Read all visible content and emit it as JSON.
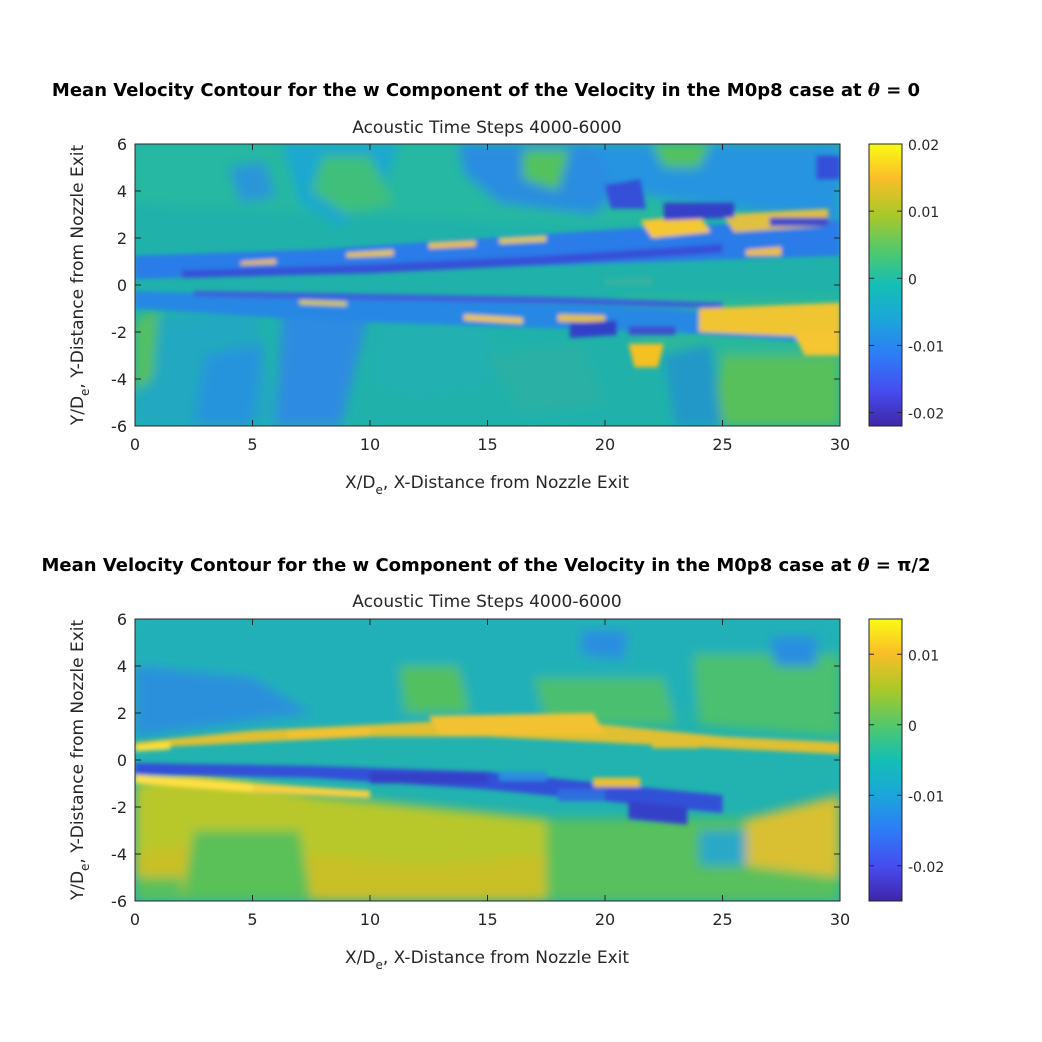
{
  "chart_data": [
    {
      "type": "heatmap",
      "title_prefix": "Mean Velocity Contour for the w Component of the Velocity in the M0p8 case at ",
      "title_symbol": "θ",
      "title_suffix": " = 0",
      "subtitle": "Acoustic Time Steps 4000-6000",
      "xlabel_main": "X/D",
      "xlabel_sub": "e",
      "xlabel_rest": ", X-Distance from Nozzle Exit",
      "ylabel_main": "Y/D",
      "ylabel_sub": "e",
      "ylabel_rest": ",  Y-Distance from Nozzle Exit",
      "xlim": [
        0,
        30
      ],
      "ylim": [
        -6,
        6
      ],
      "xticks": [
        0,
        5,
        10,
        15,
        20,
        25,
        30
      ],
      "yticks": [
        -6,
        -4,
        -2,
        0,
        2,
        4,
        6
      ],
      "colorbar": {
        "colormap": "parula",
        "clim": [
          -0.022,
          0.02
        ],
        "ticks": [
          -0.02,
          -0.01,
          0,
          0.01,
          0.02
        ],
        "tick_labels": [
          "-0.02",
          "-0.01",
          "0",
          "0.01",
          "0.02"
        ]
      }
    },
    {
      "type": "heatmap",
      "title_prefix": "Mean Velocity Contour for the w Component of the Velocity in the M0p8 case at ",
      "title_symbol": "θ",
      "title_suffix": " = π/2",
      "subtitle": "Acoustic Time Steps 4000-6000",
      "xlabel_main": "X/D",
      "xlabel_sub": "e",
      "xlabel_rest": ", X-Distance from Nozzle Exit",
      "ylabel_main": "Y/D",
      "ylabel_sub": "e",
      "ylabel_rest": ",  Y-Distance from Nozzle Exit",
      "xlim": [
        0,
        30
      ],
      "ylim": [
        -6,
        6
      ],
      "xticks": [
        0,
        5,
        10,
        15,
        20,
        25,
        30
      ],
      "yticks": [
        -6,
        -4,
        -2,
        0,
        2,
        4,
        6
      ],
      "colorbar": {
        "colormap": "parula",
        "clim": [
          -0.025,
          0.015
        ],
        "ticks": [
          -0.02,
          -0.01,
          0,
          0.01
        ],
        "tick_labels": [
          "-0.02",
          "-0.01",
          "0",
          "0.01"
        ]
      }
    }
  ]
}
